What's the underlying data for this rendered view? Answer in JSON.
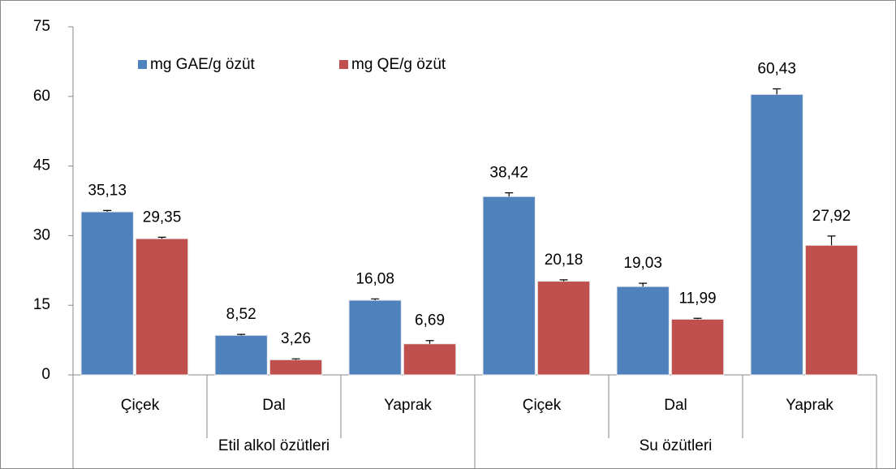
{
  "chart_data": {
    "type": "bar",
    "categories": [
      "Çiçek",
      "Dal",
      "Yaprak",
      "Çiçek",
      "Dal",
      "Yaprak"
    ],
    "groups": [
      "Etil alkol özütleri",
      "Su özütleri"
    ],
    "series": [
      {
        "name": "mg GAE/g özüt",
        "color": "#4f81bd",
        "values": [
          35.13,
          8.52,
          16.08,
          38.42,
          19.03,
          60.43
        ],
        "value_labels": [
          "35,13",
          "8,52",
          "16,08",
          "38,42",
          "19,03",
          "60,43"
        ],
        "errors": [
          0.3,
          0.2,
          0.3,
          0.8,
          0.7,
          1.2
        ]
      },
      {
        "name": "mg QE/g özüt",
        "color": "#c0504d",
        "values": [
          29.35,
          3.26,
          6.69,
          20.18,
          11.99,
          27.92
        ],
        "value_labels": [
          "29,35",
          "3,26",
          "6,69",
          "20,18",
          "11,99",
          "27,92"
        ],
        "errors": [
          0.3,
          0.2,
          0.7,
          0.3,
          0.2,
          2.0
        ]
      }
    ],
    "ylim": [
      0,
      75
    ],
    "yticks": [
      0,
      15,
      30,
      45,
      60,
      75
    ],
    "grid": false,
    "legend": "top-left"
  }
}
